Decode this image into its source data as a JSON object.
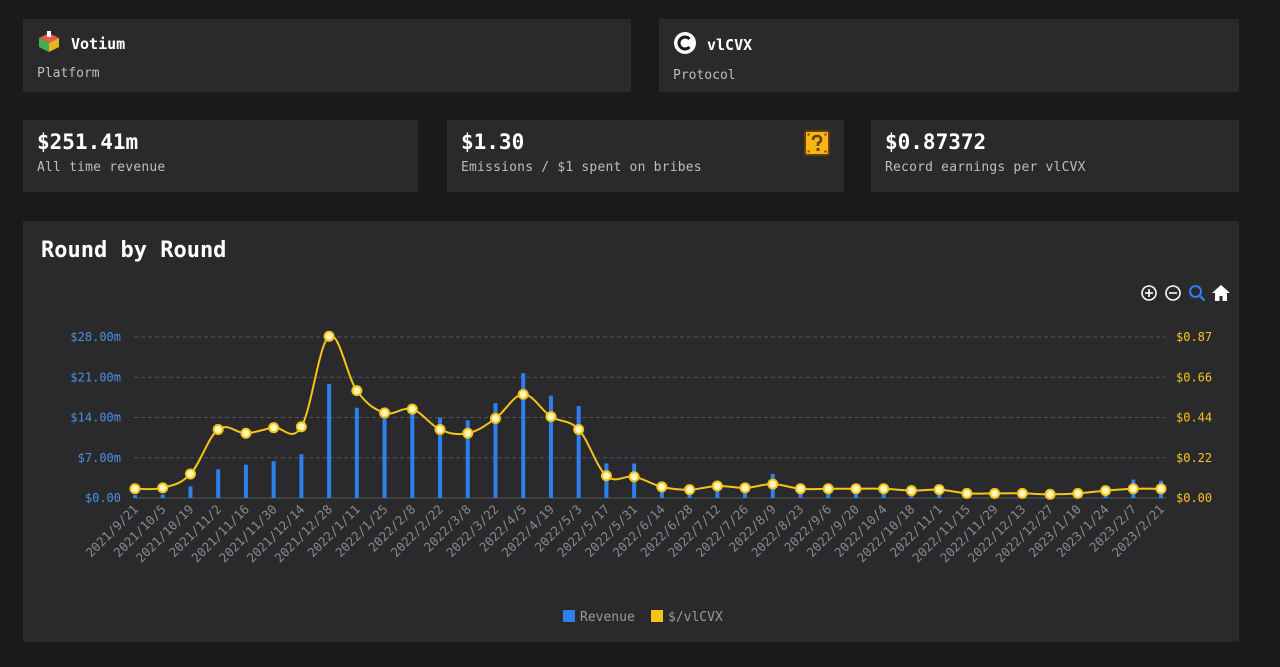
{
  "platform": {
    "name": "Votium",
    "kind": "Platform"
  },
  "protocol": {
    "name": "vlCVX",
    "kind": "Protocol"
  },
  "stats": [
    {
      "value": "$251.41m",
      "label": "All time revenue"
    },
    {
      "value": "$1.30",
      "label": "Emissions / $1 spent on bribes"
    },
    {
      "value": "$0.87372",
      "label": "Record earnings per vlCVX"
    }
  ],
  "colors": {
    "revenue": "#2f80ed",
    "per_vlcvx": "#f5c518",
    "left_axis": "#4a90e2",
    "right_axis": "#f5c518"
  },
  "toolbar": [
    "zoom-in-icon",
    "zoom-out-icon",
    "search-zoom-icon",
    "home-icon"
  ],
  "chart_data": {
    "type": "bar",
    "title": "Round by Round",
    "categories": [
      "2021/9/21",
      "2021/10/5",
      "2021/10/19",
      "2021/11/2",
      "2021/11/16",
      "2021/11/30",
      "2021/12/14",
      "2021/12/28",
      "2022/1/11",
      "2022/1/25",
      "2022/2/8",
      "2022/2/22",
      "2022/3/8",
      "2022/3/22",
      "2022/4/5",
      "2022/4/19",
      "2022/5/3",
      "2022/5/17",
      "2022/5/31",
      "2022/6/14",
      "2022/6/28",
      "2022/7/12",
      "2022/7/26",
      "2022/8/9",
      "2022/8/23",
      "2022/9/6",
      "2022/9/20",
      "2022/10/4",
      "2022/10/18",
      "2022/11/1",
      "2022/11/15",
      "2022/11/29",
      "2022/12/13",
      "2022/12/27",
      "2023/1/10",
      "2023/1/24",
      "2023/2/7",
      "2023/2/21"
    ],
    "series": [
      {
        "name": "Revenue",
        "axis": "left",
        "type": "bar",
        "values": [
          0.5,
          0.6,
          2.0,
          5.0,
          5.8,
          6.4,
          7.6,
          19.8,
          15.7,
          15.0,
          16.0,
          14.0,
          13.5,
          16.5,
          21.7,
          17.8,
          16.0,
          6.0,
          6.0,
          1.8,
          1.0,
          1.5,
          1.5,
          4.2,
          1.3,
          1.3,
          1.4,
          1.3,
          1.1,
          1.2,
          0.8,
          0.8,
          0.8,
          0.6,
          0.9,
          1.2,
          3.2,
          3.0
        ]
      },
      {
        "name": "$/vlCVX",
        "axis": "right",
        "type": "line",
        "values": [
          0.05,
          0.055,
          0.13,
          0.37,
          0.35,
          0.38,
          0.385,
          0.87372,
          0.58,
          0.46,
          0.48,
          0.37,
          0.35,
          0.43,
          0.56,
          0.44,
          0.37,
          0.12,
          0.115,
          0.06,
          0.045,
          0.065,
          0.055,
          0.075,
          0.05,
          0.05,
          0.05,
          0.05,
          0.04,
          0.045,
          0.025,
          0.025,
          0.025,
          0.02,
          0.025,
          0.04,
          0.05,
          0.05
        ]
      }
    ],
    "y_left": {
      "ticks": [
        "$0.00",
        "$7.00m",
        "$14.00m",
        "$21.00m",
        "$28.00m"
      ],
      "range": [
        0,
        28
      ]
    },
    "y_right": {
      "ticks": [
        "$0.00",
        "$0.22",
        "$0.44",
        "$0.66",
        "$0.87"
      ],
      "range": [
        0,
        0.87
      ]
    },
    "grid": true,
    "legend": "bottom"
  }
}
